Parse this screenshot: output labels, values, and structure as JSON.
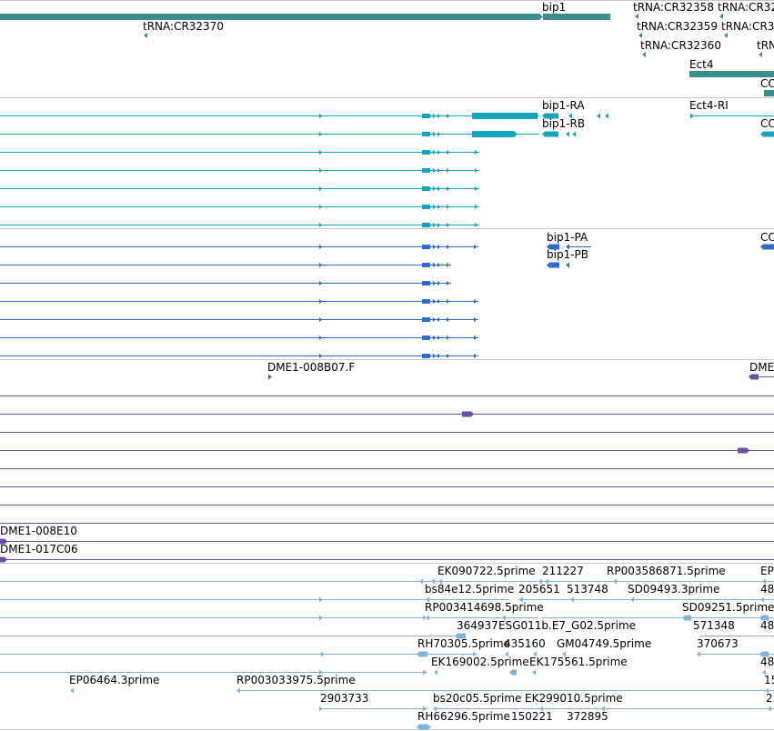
{
  "track_colors": {
    "gene": "#3a8e8e",
    "transcript": "#12a3bd",
    "protein": "#2f6bcf",
    "clone": "#6b4fa3",
    "est": "#7eb4dc",
    "separator": "#c8c8c8",
    "text": "#000000"
  },
  "labels": {
    "gene_bip1": "bip1",
    "trna_cr32370": "tRNA:CR32370",
    "trna_cr32358": "tRNA:CR32358",
    "trna_cr32_a": "tRNA:CR32",
    "trna_cr32359": "tRNA:CR32359",
    "trna_cr32_b": "tRNA:CR3",
    "trna_cr32360": "tRNA:CR32360",
    "trna_tr": "tRN",
    "gene_ect4": "Ect4",
    "gene_co": "CO",
    "tx_bip1_ra": "bip1-RA",
    "tx_bip1_rb": "bip1-RB",
    "tx_ect4_ri": "Ect4-RI",
    "tx_co": "CO",
    "pr_bip1_pa": "bip1-PA",
    "pr_bip1_pb": "bip1-PB",
    "pr_co": "CO",
    "cl_008b07": "DME1-008B07.F",
    "cl_dme": "DME",
    "cl_008e10": "DME1-008E10",
    "cl_017c06": "DME1-017C06",
    "est_ek090722": "EK090722.5prime",
    "est_211227": "211227",
    "est_rp003586871": "RP003586871.5prime",
    "est_ep_a": "EP",
    "est_bs84e12": "bs84e12.5prime",
    "est_205651": "205651",
    "est_513748": "513748",
    "est_sd09493": "SD09493.3prime",
    "est_48_a": "48",
    "est_rp003414698": "RP003414698.5prime",
    "est_sd09251": "SD09251.5prime",
    "est_364937": "364937",
    "est_esg011b": "ESG011b.E7_G02.5prime",
    "est_571348": "571348",
    "est_48_b": "48",
    "est_rh70305": "RH70305.5prime",
    "est_435160": "435160",
    "est_gm04749": "GM04749.5prime",
    "est_370673": "370673",
    "est_ek169002": "EK169002.5prime",
    "est_ek175561": "EK175561.5prime",
    "est_48_c": "48",
    "est_ep06464": "EP06464.3prime",
    "est_rp003033975": "RP003033975.5prime",
    "est_15": "15",
    "est_2903733": "2903733",
    "est_bs20c05": "bs20c05.5prime",
    "est_ek299010": "EK299010.5prime",
    "est_2": "2",
    "est_rh66296": "RH66296.5prime",
    "est_150221": "150221",
    "est_372895": "372895"
  }
}
